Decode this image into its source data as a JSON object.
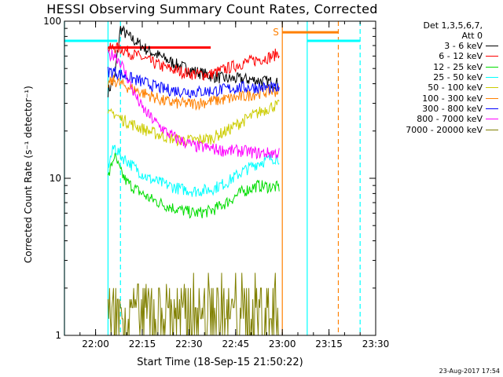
{
  "chart_data": {
    "type": "line",
    "title": "HESSI Observing Summary Count Rates, Corrected",
    "xlabel": "Start Time (18-Sep-15 21:50:22)",
    "ylabel": "Corrected Count Rate (s⁻¹ detector⁻¹)",
    "yscale": "log",
    "ylim": [
      1,
      100
    ],
    "xlim": [
      "21:50",
      "23:30"
    ],
    "x_ticks": [
      "22:00",
      "22:15",
      "22:30",
      "22:45",
      "23:00",
      "23:15",
      "23:30"
    ],
    "y_ticks": [
      "1",
      "10",
      "100"
    ],
    "legend_header": [
      "Det 1,3,5,6,7,",
      "Att 0"
    ],
    "legend_placement": "right",
    "series": [
      {
        "name": "3 - 6 keV",
        "color": "#000000",
        "x": [
          "22:04",
          "22:06",
          "22:08",
          "22:10",
          "22:13",
          "22:17",
          "22:22",
          "22:27",
          "22:32",
          "22:37",
          "22:42",
          "22:47",
          "22:52",
          "22:57",
          "22:59"
        ],
        "y": [
          36,
          42,
          90,
          82,
          74,
          65,
          58,
          52,
          48,
          45,
          43,
          43,
          42,
          41,
          40
        ]
      },
      {
        "name": "6 - 12 keV",
        "color": "#ff0000",
        "x": [
          "22:04",
          "22:06",
          "22:08",
          "22:12",
          "22:17",
          "22:22",
          "22:27",
          "22:32",
          "22:37",
          "22:42",
          "22:47",
          "22:52",
          "22:57",
          "22:59"
        ],
        "y": [
          66,
          68,
          67,
          62,
          56,
          51,
          48,
          46,
          46,
          50,
          54,
          57,
          60,
          64
        ]
      },
      {
        "name": "12 - 25 keV",
        "color": "#00dd00",
        "x": [
          "22:04",
          "22:06",
          "22:08",
          "22:10",
          "22:13",
          "22:17",
          "22:22",
          "22:27",
          "22:32",
          "22:37",
          "22:42",
          "22:47",
          "22:52",
          "22:57",
          "22:59"
        ],
        "y": [
          10,
          14,
          11,
          9.5,
          8.5,
          7.5,
          6.8,
          6.3,
          6.0,
          6.2,
          7.0,
          8.2,
          9.0,
          8.8,
          8.8
        ]
      },
      {
        "name": "25 - 50 keV",
        "color": "#00ffff",
        "x": [
          "22:04",
          "22:06",
          "22:08",
          "22:10",
          "22:13",
          "22:17",
          "22:22",
          "22:27",
          "22:32",
          "22:37",
          "22:42",
          "22:47",
          "22:52",
          "22:57",
          "22:59"
        ],
        "y": [
          12,
          16,
          14,
          13,
          11.5,
          10,
          9.2,
          8.6,
          8.3,
          8.5,
          9.4,
          11.0,
          12.5,
          13.5,
          13.5
        ]
      },
      {
        "name": "50 - 100 keV",
        "color": "#cccc00",
        "x": [
          "22:04",
          "22:06",
          "22:08",
          "22:12",
          "22:17",
          "22:22",
          "22:27",
          "22:32",
          "22:37",
          "22:42",
          "22:47",
          "22:52",
          "22:57",
          "22:59"
        ],
        "y": [
          25,
          26,
          24,
          22,
          20,
          18.5,
          17.5,
          17.5,
          18,
          20,
          23,
          26,
          29,
          29
        ]
      },
      {
        "name": "100 - 300 keV",
        "color": "#ff8000",
        "x": [
          "22:04",
          "22:06",
          "22:08",
          "22:12",
          "22:17",
          "22:22",
          "22:27",
          "22:32",
          "22:37",
          "22:42",
          "22:47",
          "22:52",
          "22:57",
          "22:59"
        ],
        "y": [
          40,
          42,
          40,
          37,
          34,
          31,
          30,
          30,
          31,
          32,
          33,
          35,
          36,
          36
        ]
      },
      {
        "name": "300 - 800 keV",
        "color": "#0000ff",
        "x": [
          "22:04",
          "22:06",
          "22:08",
          "22:12",
          "22:17",
          "22:22",
          "22:27",
          "22:32",
          "22:37",
          "22:42",
          "22:47",
          "22:52",
          "22:57",
          "22:59"
        ],
        "y": [
          48,
          48,
          46,
          43,
          40,
          37,
          36,
          35.5,
          36,
          37,
          38,
          38,
          37.5,
          37
        ]
      },
      {
        "name": "800 - 7000 keV",
        "color": "#ff00ff",
        "x": [
          "22:04",
          "22:06",
          "22:08",
          "22:10",
          "22:12",
          "22:15",
          "22:19",
          "22:23",
          "22:27",
          "22:32",
          "22:37",
          "22:42",
          "22:47",
          "22:52",
          "22:57",
          "22:59"
        ],
        "y": [
          60,
          62,
          55,
          45,
          36,
          28,
          23,
          19.5,
          17.5,
          16,
          15.5,
          15,
          15,
          14.5,
          14.5,
          14.5
        ]
      },
      {
        "name": "7000 - 20000 keV",
        "color": "#808000",
        "x": [
          "22:04",
          "22:06",
          "22:08",
          "22:12",
          "22:15",
          "22:18",
          "22:40",
          "22:45",
          "22:50",
          "22:55",
          "22:59"
        ],
        "y": [
          2,
          2,
          1.5,
          1.3,
          1.5,
          1.2,
          2,
          1.5,
          2,
          1.5,
          2
        ]
      }
    ],
    "flags": {
      "saa_label": "S",
      "bars": [
        {
          "name": "saa-bar",
          "color": "#ff8000",
          "x": [
            "23:00",
            "23:18"
          ],
          "y": 85
        },
        {
          "name": "night-bar-left",
          "color": "#00ffff",
          "x": [
            "21:50",
            "22:07"
          ],
          "y": 75
        },
        {
          "name": "night-bar-right",
          "color": "#00ffff",
          "x": [
            "23:08",
            "23:25"
          ],
          "y": 75
        },
        {
          "name": "flare-bar",
          "color": "#ff0000",
          "x": [
            "22:04",
            "22:37"
          ],
          "y": 68
        }
      ],
      "vlines": [
        {
          "x": "22:04",
          "color": "#00ffff",
          "dash": false
        },
        {
          "x": "22:08",
          "color": "#00ffff",
          "dash": true
        },
        {
          "x": "23:00",
          "color": "#ff8000",
          "dash": false
        },
        {
          "x": "23:08",
          "color": "#00ffff",
          "dash": false
        },
        {
          "x": "23:18",
          "color": "#ff8000",
          "dash": true
        },
        {
          "x": "23:25",
          "color": "#00ffff",
          "dash": true
        },
        {
          "x": "21:50",
          "color": "#00ffff",
          "dash": false
        }
      ]
    }
  },
  "timestamp": "23-Aug-2017 17:54"
}
